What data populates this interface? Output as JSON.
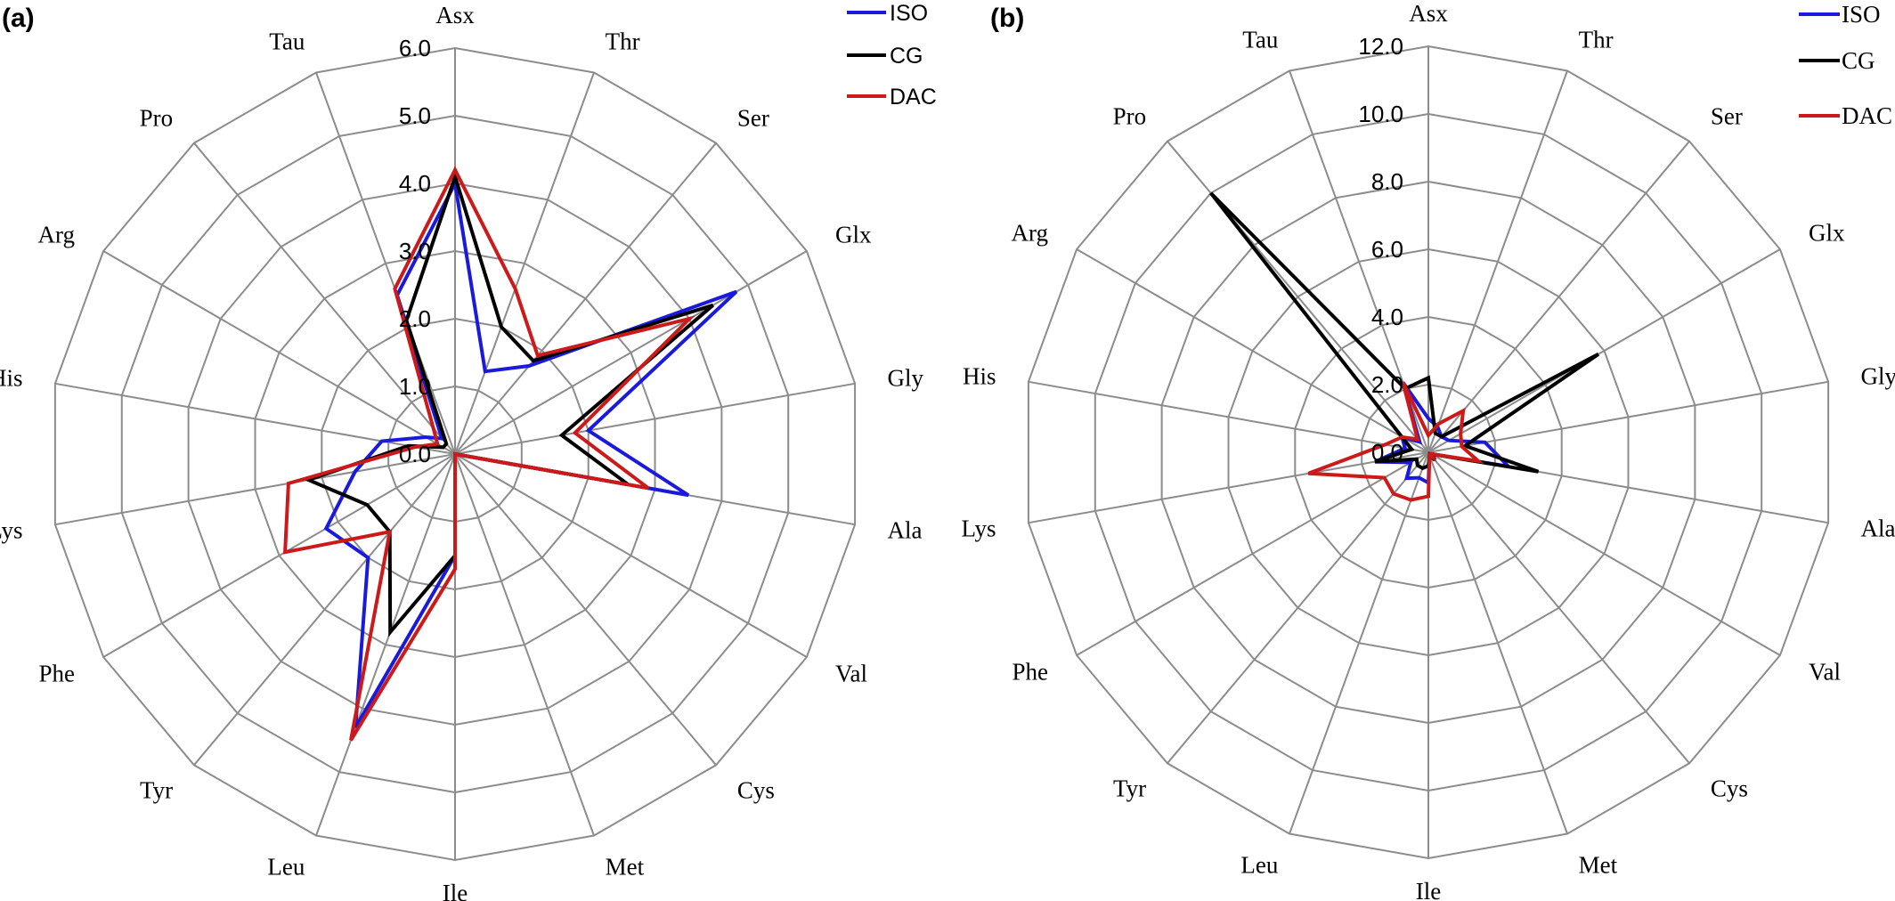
{
  "colors": {
    "ISO": "#1a1adc",
    "CG": "#000000",
    "DAC": "#cc1a1a",
    "grid": "#8c8c8c"
  },
  "chart_data": [
    {
      "type": "radar",
      "panel_label": "(a)",
      "categories": [
        "Asx",
        "Thr",
        "Ser",
        "Glx",
        "Gly",
        "Ala",
        "Val",
        "Cys",
        "Met",
        "Ile",
        "Leu",
        "Tyr",
        "Phe",
        "Lys",
        "His",
        "Arg",
        "Pro",
        "Tau"
      ],
      "ticks": [
        "0.0",
        "1.0",
        "2.0",
        "3.0",
        "4.0",
        "5.0",
        "6.0"
      ],
      "rmax": 6.0,
      "legend_placement": "top-right",
      "series": [
        {
          "name": "ISO",
          "values": [
            4.0,
            1.3,
            1.7,
            4.8,
            2.0,
            3.5,
            0.0,
            0.0,
            0.0,
            1.5,
            4.3,
            2.0,
            2.2,
            1.5,
            1.1,
            0.5,
            0.3,
            2.5
          ]
        },
        {
          "name": "CG",
          "values": [
            4.1,
            2.0,
            1.8,
            4.4,
            1.6,
            2.6,
            0.0,
            0.0,
            0.0,
            1.5,
            2.8,
            1.5,
            1.5,
            2.2,
            0.7,
            0.2,
            0.2,
            2.1
          ]
        },
        {
          "name": "DAC",
          "values": [
            4.2,
            2.6,
            1.9,
            4.0,
            1.8,
            2.9,
            0.0,
            0.0,
            0.0,
            1.7,
            4.5,
            1.5,
            2.9,
            2.5,
            0.6,
            0.3,
            0.5,
            2.6
          ]
        }
      ]
    },
    {
      "type": "radar",
      "panel_label": "(b)",
      "categories": [
        "Asx",
        "Thr",
        "Ser",
        "Glx",
        "Gly",
        "Ala",
        "Val",
        "Cys",
        "Met",
        "Ile",
        "Leu",
        "Tyr",
        "Phe",
        "Lys",
        "His",
        "Arg",
        "Pro",
        "Tau"
      ],
      "ticks": [
        "0.0",
        "2.0",
        "4.0",
        "6.0",
        "8.0",
        "10.0",
        "12.0"
      ],
      "rmax": 12.0,
      "legend_placement": "top-right",
      "series": [
        {
          "name": "ISO",
          "values": [
            1.0,
            0.8,
            0.6,
            0.7,
            1.7,
            2.4,
            0.1,
            0.2,
            0.1,
            0.9,
            0.8,
            1.0,
            0.6,
            1.6,
            0.7,
            0.9,
            0.4,
            2.2
          ]
        },
        {
          "name": "CG",
          "values": [
            2.2,
            0.6,
            0.6,
            5.8,
            1.1,
            3.3,
            0.1,
            0.3,
            0.1,
            0.4,
            0.5,
            0.5,
            0.4,
            1.6,
            0.5,
            0.9,
            10.0,
            2.0
          ]
        },
        {
          "name": "DAC",
          "values": [
            0.5,
            0.9,
            1.6,
            1.1,
            1.0,
            1.5,
            0.1,
            0.2,
            0.1,
            1.3,
            1.5,
            1.6,
            1.5,
            3.6,
            1.3,
            0.9,
            0.5,
            2.2
          ]
        }
      ]
    }
  ]
}
